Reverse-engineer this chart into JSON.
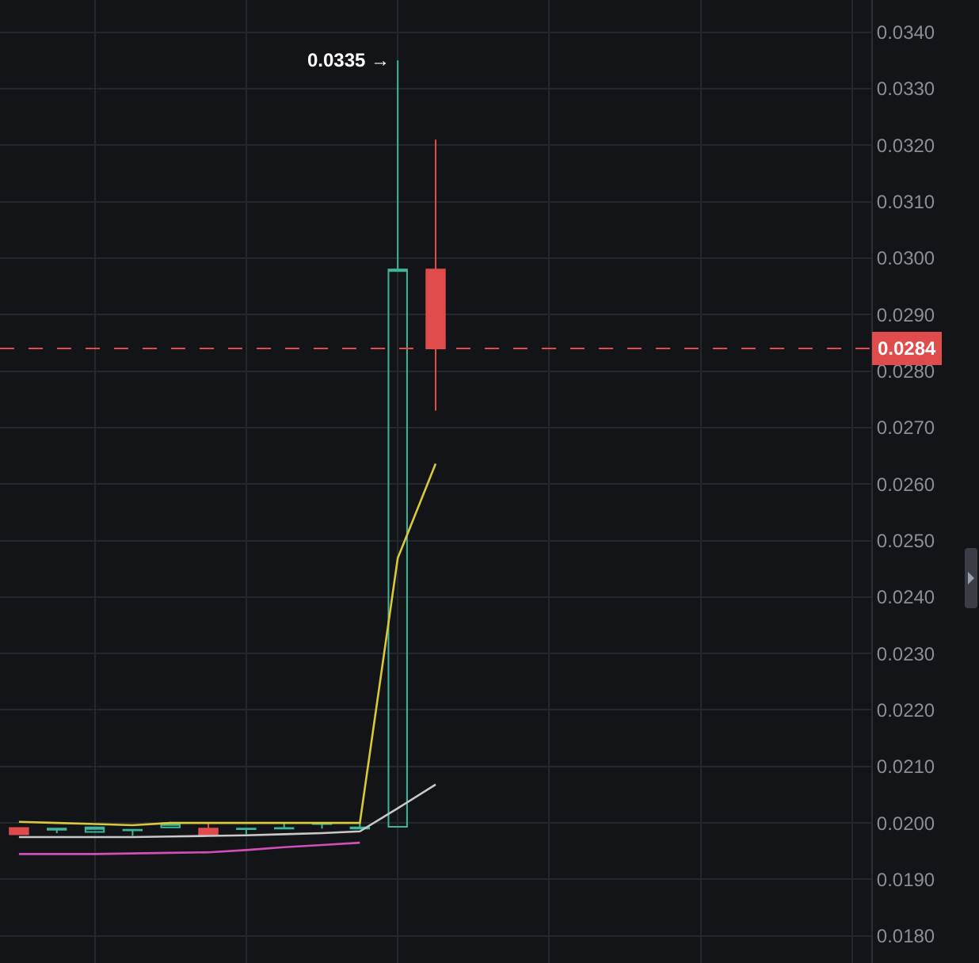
{
  "chart_data": {
    "type": "candlestick",
    "categories": [
      null,
      null,
      null,
      null,
      null,
      null,
      null,
      null,
      null,
      null,
      null,
      null,
      null,
      null,
      null,
      null,
      null,
      null,
      null,
      null,
      null,
      null,
      null
    ],
    "ohlc": [
      [
        0.01991,
        0.01991,
        0.0198,
        0.0198
      ],
      [
        0.01988,
        0.0199,
        0.01982,
        0.0199
      ],
      [
        0.01984,
        0.01992,
        0.01984,
        0.01992
      ],
      [
        0.01987,
        0.01988,
        0.01977,
        0.01988
      ],
      [
        0.01992,
        0.02002,
        0.01992,
        0.01999
      ],
      [
        0.0199,
        0.02,
        0.01979,
        0.01979
      ],
      [
        0.01989,
        0.0199,
        0.0198,
        0.0199
      ],
      [
        0.0199,
        0.02,
        0.0199,
        0.01991
      ],
      [
        0.01998,
        0.02,
        0.0199,
        0.02
      ],
      [
        0.0199,
        0.02,
        0.0199,
        0.01992
      ],
      [
        0.01993,
        0.0335,
        0.01993,
        0.0298
      ],
      [
        0.0298,
        0.0321,
        0.0273,
        0.0284
      ],
      null,
      null,
      null,
      null,
      null,
      null,
      null,
      null,
      null,
      null,
      null
    ],
    "colors": [
      "#e04b4b",
      "#3fb59a",
      "#3fb59a",
      "#3fb59a",
      "#3fb59a",
      "#e04b4b",
      "#3fb59a",
      "#3fb59a",
      "#3fb59a",
      "#3fb59a",
      "#3fb59a",
      "#e04b4b",
      null,
      null,
      null,
      null,
      null,
      null,
      null,
      null,
      null,
      null,
      null
    ],
    "series": [
      {
        "type": "line",
        "color": "#d9c93a",
        "values": [
          0.02002,
          0.02,
          0.01998,
          0.01996,
          0.02,
          0.02,
          0.02,
          0.02,
          0.02,
          0.02,
          0.02469,
          0.02636,
          null,
          null,
          null,
          null,
          null,
          null,
          null,
          null,
          null,
          null,
          null
        ]
      },
      {
        "type": "line",
        "color": "#c8c8c8",
        "values": [
          0.01975,
          0.01975,
          0.01975,
          0.01975,
          0.01976,
          0.01977,
          0.01978,
          0.0198,
          0.01982,
          0.01985,
          0.02026,
          0.02068,
          null,
          null,
          null,
          null,
          null,
          null,
          null,
          null,
          null,
          null,
          null
        ]
      },
      {
        "type": "line",
        "color": "#d34fb8",
        "values": [
          0.01945,
          0.01945,
          0.01945,
          0.01946,
          0.01947,
          0.01948,
          0.01952,
          0.01957,
          0.01961,
          0.01965,
          null,
          null,
          null,
          null,
          null,
          null,
          null,
          null,
          null,
          null,
          null,
          null,
          null
        ]
      }
    ],
    "ylim": [
      0.01752,
      0.03457
    ],
    "yticks": [
      {
        "value": 0.018,
        "label": "0.0180"
      },
      {
        "value": 0.019,
        "label": "0.0190"
      },
      {
        "value": 0.02,
        "label": "0.0200"
      },
      {
        "value": 0.021,
        "label": "0.0210"
      },
      {
        "value": 0.022,
        "label": "0.0220"
      },
      {
        "value": 0.023,
        "label": "0.0230"
      },
      {
        "value": 0.024,
        "label": "0.0240"
      },
      {
        "value": 0.025,
        "label": "0.0250"
      },
      {
        "value": 0.026,
        "label": "0.0260"
      },
      {
        "value": 0.027,
        "label": "0.0270"
      },
      {
        "value": 0.028,
        "label": "0.0280"
      },
      {
        "value": 0.029,
        "label": "0.0290"
      },
      {
        "value": 0.03,
        "label": "0.0300"
      },
      {
        "value": 0.031,
        "label": "0.0310"
      },
      {
        "value": 0.032,
        "label": "0.0320"
      },
      {
        "value": 0.033,
        "label": "0.0330"
      },
      {
        "value": 0.034,
        "label": "0.0340"
      }
    ],
    "ref_lines": [
      {
        "axis": "y",
        "value": 0.0284,
        "label": "0.0284",
        "color": "#e04b4b",
        "line_style": "dashed"
      }
    ],
    "annotations": [
      "0.0335 →"
    ],
    "grid": true,
    "tick_labels": "y"
  }
}
